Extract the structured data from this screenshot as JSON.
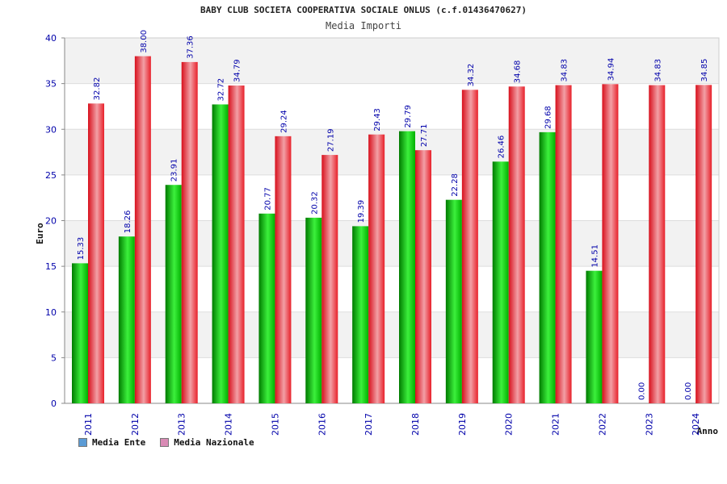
{
  "chart_data": {
    "type": "bar",
    "title": "BABY CLUB SOCIETA COOPERATIVA SOCIALE ONLUS (c.f.01436470627)",
    "subtitle": "Media Importi",
    "ylabel": "Euro",
    "xlabel": "Anno",
    "ylim": [
      0,
      40
    ],
    "yticks": [
      "0",
      "5",
      "10",
      "15",
      "20",
      "25",
      "30",
      "35",
      "40"
    ],
    "grid": true,
    "legend_position": "bottom-left",
    "categories": [
      "2011",
      "2012",
      "2013",
      "2014",
      "2015",
      "2016",
      "2017",
      "2018",
      "2019",
      "2020",
      "2021",
      "2022",
      "2023",
      "2024"
    ],
    "series": [
      {
        "name": "Media Ente",
        "color": "#00b400",
        "legend_color": "#5b9bd5",
        "values": [
          15.33,
          18.26,
          23.91,
          32.72,
          20.77,
          20.32,
          19.39,
          29.79,
          22.28,
          26.46,
          29.68,
          14.51,
          0.0,
          0.0
        ],
        "labels": [
          "15.33",
          "18.26",
          "23.91",
          "32.72",
          "20.77",
          "20.32",
          "19.39",
          "29.79",
          "22.28",
          "26.46",
          "29.68",
          "14.51",
          "0.00",
          "0.00"
        ]
      },
      {
        "name": "Media Nazionale",
        "color": "#e8202a",
        "legend_color": "#d98bb5",
        "values": [
          32.82,
          38.0,
          37.36,
          34.79,
          29.24,
          27.19,
          29.43,
          27.71,
          34.32,
          34.68,
          34.83,
          34.94,
          34.83,
          34.85
        ],
        "labels": [
          "32.82",
          "38.00",
          "37.36",
          "34.79",
          "29.24",
          "27.19",
          "29.43",
          "27.71",
          "34.32",
          "34.68",
          "34.83",
          "34.94",
          "34.83",
          "34.85"
        ]
      }
    ]
  }
}
